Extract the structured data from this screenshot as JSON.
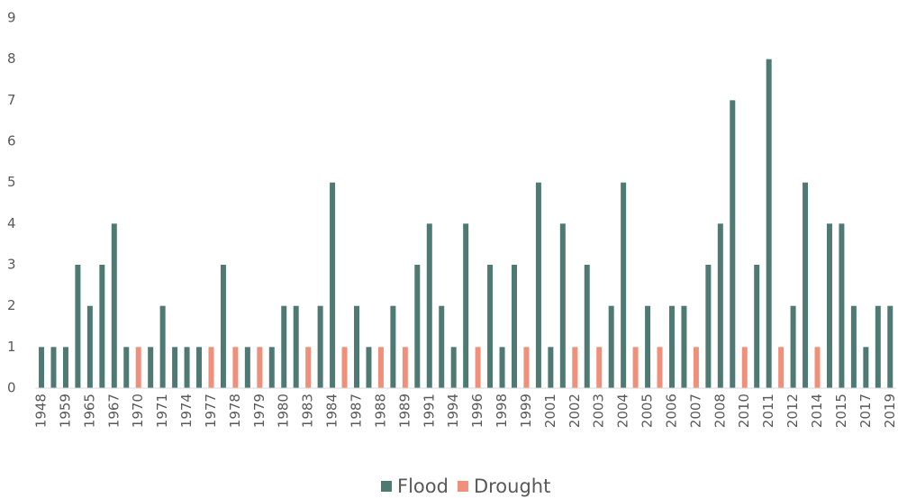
{
  "chart_data": {
    "type": "bar",
    "stacked": true,
    "categories": [
      "1948",
      null,
      "1959",
      null,
      "1965",
      null,
      "1967",
      null,
      "1970",
      null,
      "1971",
      null,
      "1974",
      null,
      "1977",
      null,
      "1978",
      null,
      "1979",
      null,
      "1980",
      null,
      "1983",
      null,
      "1984",
      null,
      "1987",
      null,
      "1988",
      null,
      "1989",
      null,
      "1991",
      null,
      "1994",
      null,
      "1996",
      null,
      "1998",
      null,
      "1999",
      null,
      "2001",
      null,
      "2002",
      null,
      "2003",
      null,
      "2004",
      null,
      "2005",
      null,
      "2006",
      null,
      "2007",
      null,
      "2008",
      null,
      "2010",
      null,
      "2011",
      null,
      "2012",
      null,
      "2014",
      null,
      "2015",
      null,
      "2017",
      null,
      "2019"
    ],
    "series": [
      {
        "name": "Flood",
        "color": "#4f7a74",
        "values": [
          1,
          1,
          1,
          3,
          2,
          3,
          4,
          1,
          null,
          1,
          2,
          1,
          1,
          1,
          null,
          3,
          null,
          1,
          null,
          1,
          2,
          2,
          null,
          2,
          5,
          null,
          2,
          1,
          null,
          2,
          null,
          3,
          4,
          2,
          1,
          4,
          null,
          3,
          1,
          3,
          null,
          5,
          1,
          4,
          null,
          3,
          null,
          2,
          5,
          null,
          2,
          null,
          2,
          2,
          null,
          3,
          4,
          7,
          null,
          3,
          8,
          null,
          2,
          5,
          null,
          4,
          4,
          2,
          1,
          2,
          2
        ]
      },
      {
        "name": "Drought",
        "color": "#f0907a",
        "values": [
          null,
          null,
          null,
          null,
          null,
          null,
          null,
          null,
          1,
          null,
          null,
          null,
          null,
          null,
          1,
          null,
          1,
          null,
          1,
          null,
          null,
          null,
          1,
          null,
          null,
          1,
          null,
          null,
          1,
          null,
          1,
          null,
          null,
          null,
          null,
          null,
          1,
          null,
          null,
          null,
          1,
          null,
          null,
          null,
          1,
          null,
          1,
          null,
          null,
          1,
          null,
          1,
          null,
          null,
          1,
          null,
          null,
          null,
          1,
          null,
          null,
          1,
          null,
          null,
          1,
          null,
          null,
          null,
          null,
          null,
          null
        ]
      }
    ],
    "ylim": [
      0,
      9
    ],
    "yticks": [
      0,
      1,
      2,
      3,
      4,
      5,
      6,
      7,
      8,
      9
    ],
    "grid": false,
    "legend": "bottom"
  }
}
